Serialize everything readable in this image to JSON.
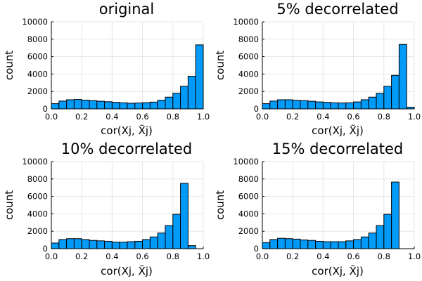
{
  "chart_data": [
    {
      "type": "bar",
      "title": "original",
      "xlabel": "cor(Xj, X̃j)",
      "ylabel": "count",
      "xlim": [
        0.0,
        1.0
      ],
      "ylim": [
        0,
        10000
      ],
      "xticks": [
        "0.0",
        "0.2",
        "0.4",
        "0.6",
        "0.8",
        "1.0"
      ],
      "yticks": [
        "0",
        "2000",
        "4000",
        "6000",
        "8000",
        "10000"
      ],
      "grid": true,
      "bar_color": "#009af9",
      "bin_width": 0.05,
      "bin_starts": [
        0.0,
        0.05,
        0.1,
        0.15,
        0.2,
        0.25,
        0.3,
        0.35,
        0.4,
        0.45,
        0.5,
        0.55,
        0.6,
        0.65,
        0.7,
        0.75,
        0.8,
        0.85,
        0.9,
        0.95
      ],
      "values": [
        600,
        900,
        1050,
        1080,
        1000,
        950,
        880,
        820,
        750,
        700,
        650,
        680,
        720,
        780,
        1000,
        1350,
        1800,
        2600,
        3750,
        7350
      ]
    },
    {
      "type": "bar",
      "title": "5% decorrelated",
      "xlabel": "cor(Xj, X̃j)",
      "ylabel": "count",
      "xlim": [
        0.0,
        1.0
      ],
      "ylim": [
        0,
        10000
      ],
      "xticks": [
        "0.0",
        "0.2",
        "0.4",
        "0.6",
        "0.8",
        "1.0"
      ],
      "yticks": [
        "0",
        "2000",
        "4000",
        "6000",
        "8000",
        "10000"
      ],
      "grid": true,
      "bar_color": "#009af9",
      "bin_width": 0.05,
      "bin_starts": [
        0.0,
        0.05,
        0.1,
        0.15,
        0.2,
        0.25,
        0.3,
        0.35,
        0.4,
        0.45,
        0.5,
        0.55,
        0.6,
        0.65,
        0.7,
        0.75,
        0.8,
        0.85,
        0.9,
        0.95
      ],
      "values": [
        600,
        900,
        1050,
        1050,
        980,
        950,
        880,
        800,
        750,
        700,
        680,
        700,
        800,
        1050,
        1350,
        1800,
        2600,
        3850,
        7400,
        200
      ]
    },
    {
      "type": "bar",
      "title": "10% decorrelated",
      "xlabel": "cor(Xj, X̃j)",
      "ylabel": "count",
      "xlim": [
        0.0,
        1.0
      ],
      "ylim": [
        0,
        10000
      ],
      "xticks": [
        "0.0",
        "0.2",
        "0.4",
        "0.6",
        "0.8",
        "1.0"
      ],
      "yticks": [
        "0",
        "2000",
        "4000",
        "6000",
        "8000",
        "10000"
      ],
      "grid": true,
      "bar_color": "#009af9",
      "bin_width": 0.05,
      "bin_starts": [
        0.0,
        0.05,
        0.1,
        0.15,
        0.2,
        0.25,
        0.3,
        0.35,
        0.4,
        0.45,
        0.5,
        0.55,
        0.6,
        0.65,
        0.7,
        0.75,
        0.8,
        0.85,
        0.9
      ],
      "values": [
        650,
        1050,
        1150,
        1150,
        1050,
        950,
        900,
        850,
        750,
        750,
        800,
        850,
        1050,
        1350,
        1800,
        2650,
        3950,
        7500,
        350
      ]
    },
    {
      "type": "bar",
      "title": "15% decorrelated",
      "xlabel": "cor(Xj, X̃j)",
      "ylabel": "count",
      "xlim": [
        0.0,
        1.0
      ],
      "ylim": [
        0,
        10000
      ],
      "xticks": [
        "0.0",
        "0.2",
        "0.4",
        "0.6",
        "0.8",
        "1.0"
      ],
      "yticks": [
        "0",
        "2000",
        "4000",
        "6000",
        "8000",
        "10000"
      ],
      "grid": true,
      "bar_color": "#009af9",
      "bin_width": 0.05,
      "bin_starts": [
        0.0,
        0.05,
        0.1,
        0.15,
        0.2,
        0.25,
        0.3,
        0.35,
        0.4,
        0.45,
        0.5,
        0.55,
        0.6,
        0.65,
        0.7,
        0.75,
        0.8,
        0.85
      ],
      "values": [
        700,
        1050,
        1200,
        1150,
        1100,
        1000,
        950,
        850,
        800,
        800,
        800,
        900,
        1050,
        1350,
        1800,
        2650,
        3950,
        7650
      ]
    }
  ]
}
